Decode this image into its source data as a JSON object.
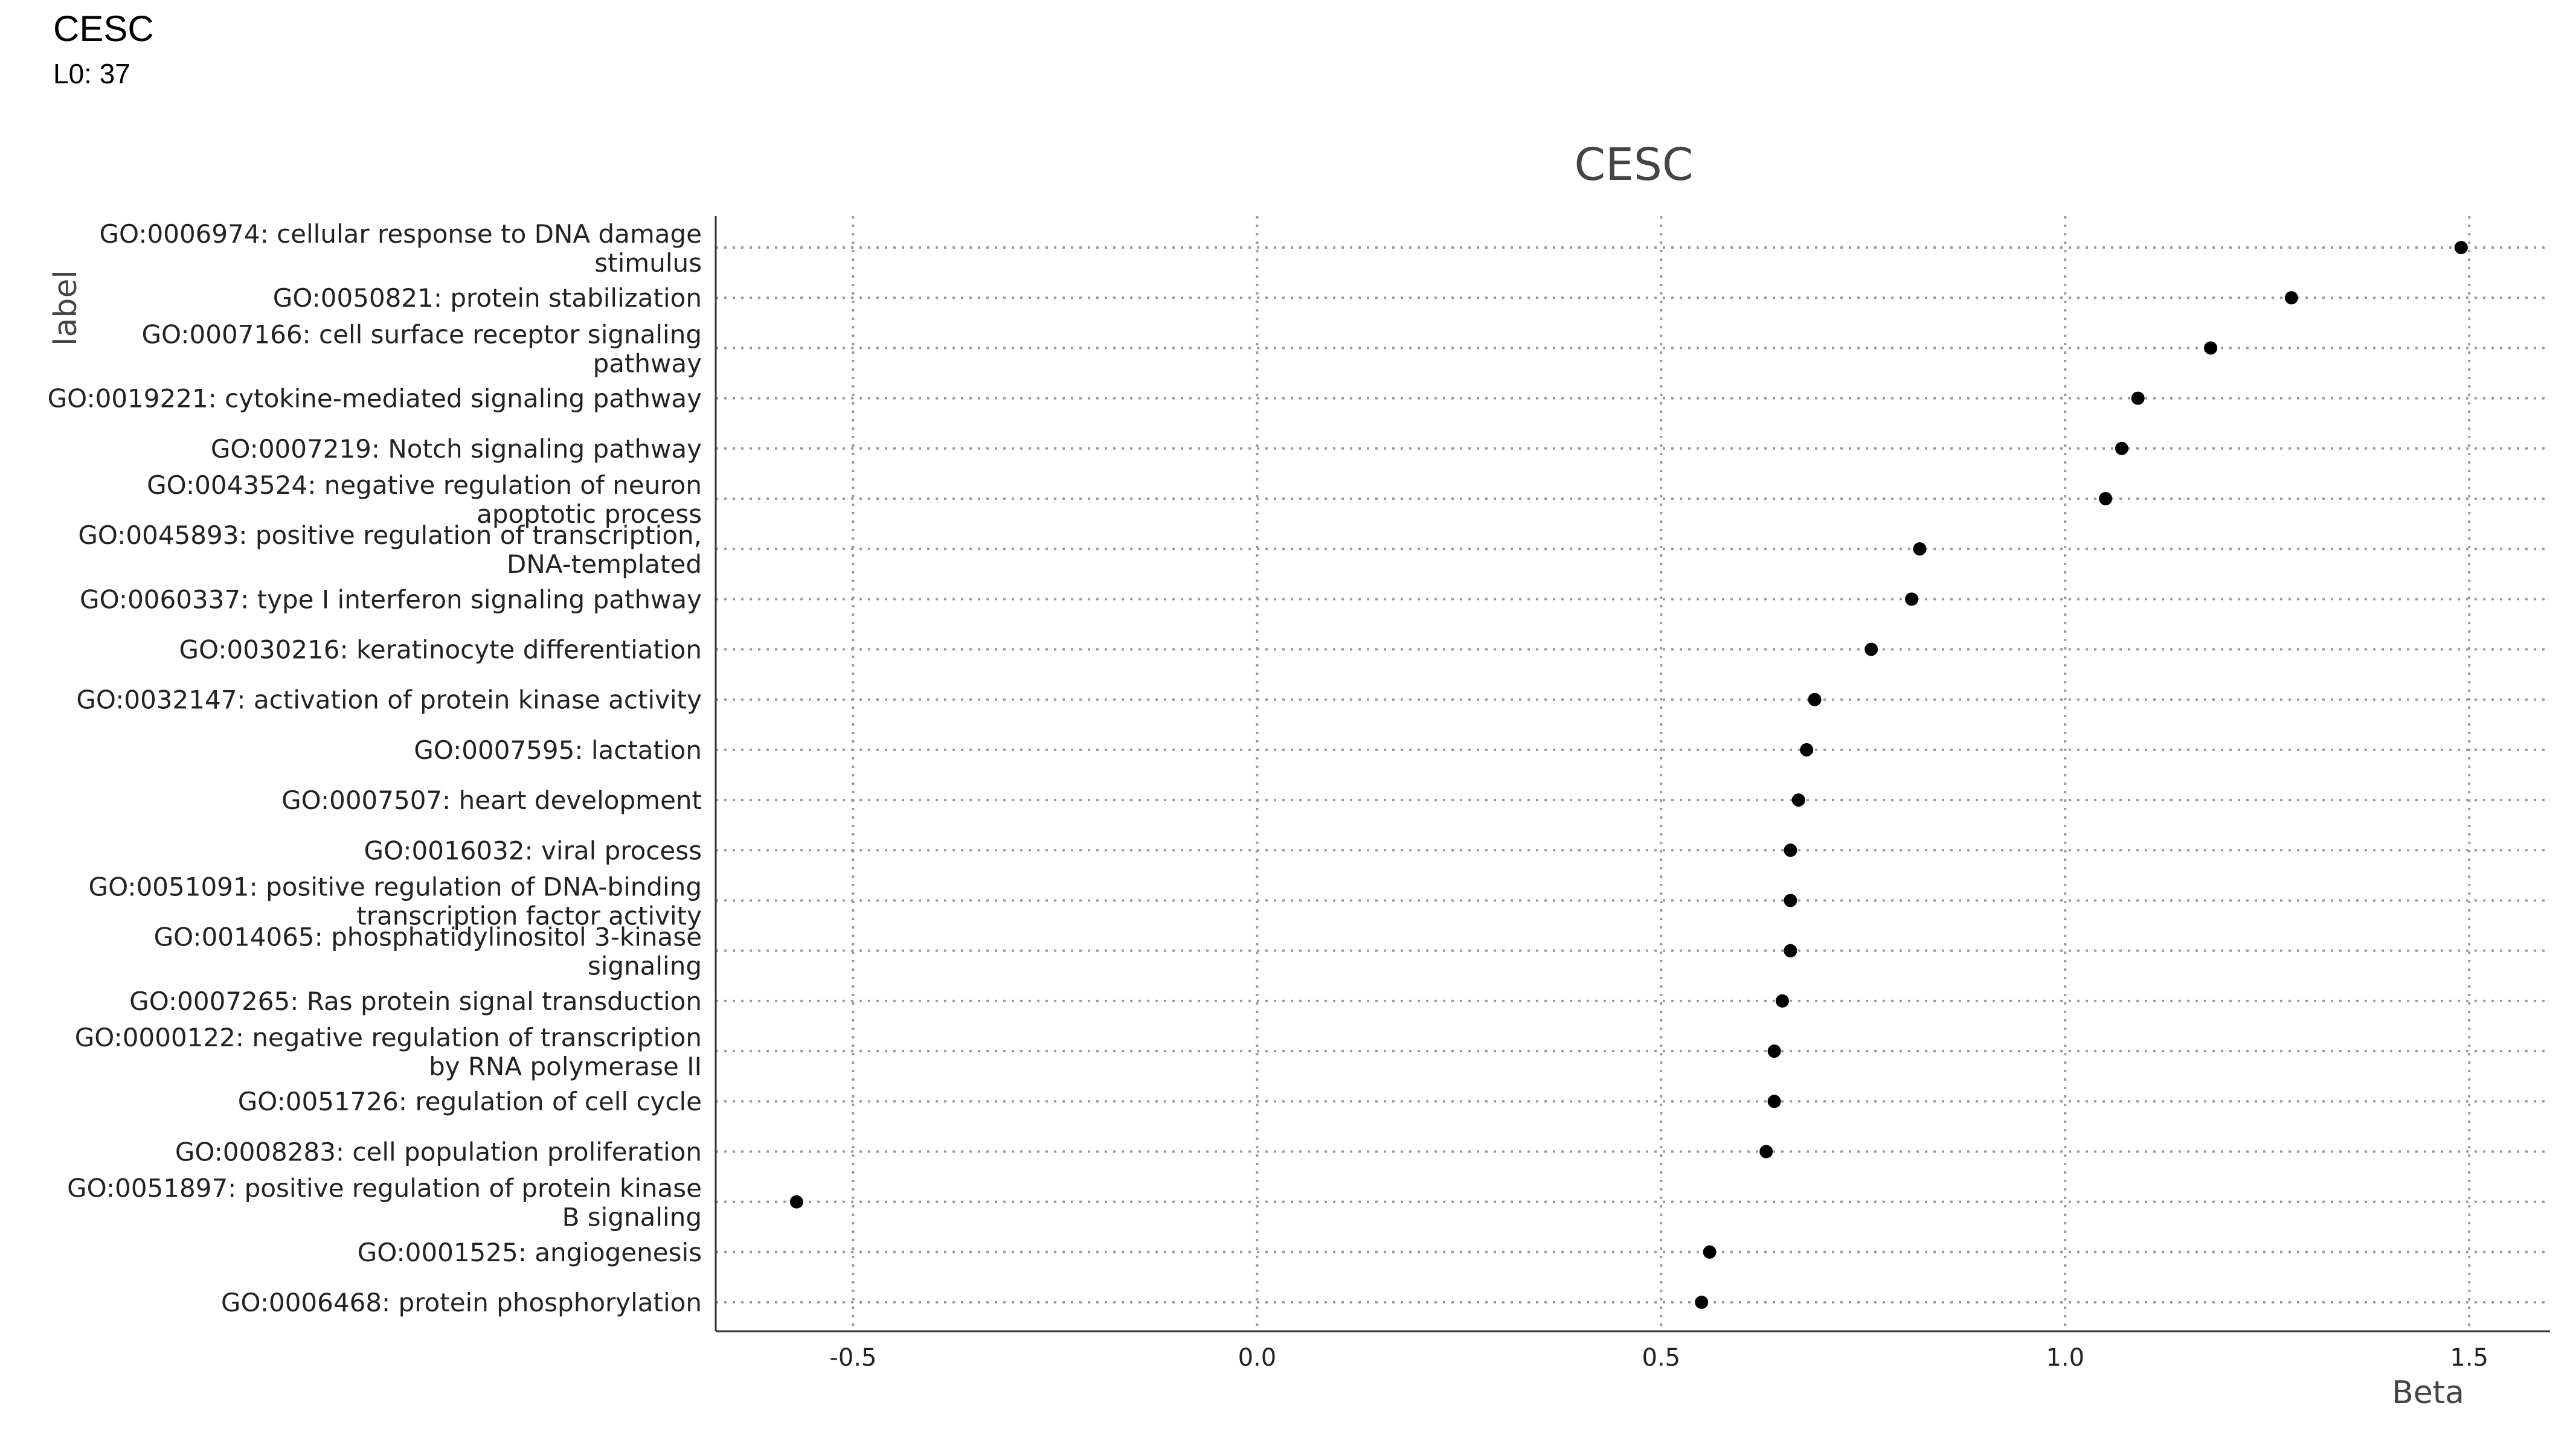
{
  "header": {
    "title": "CESC",
    "subtitle": "L0: 37"
  },
  "chart_data": {
    "type": "scatter",
    "title": "CESC",
    "xlabel": "Beta",
    "ylabel": "label",
    "xlim": [
      -0.67,
      1.6
    ],
    "xticks": [
      -0.5,
      0.0,
      0.5,
      1.0,
      1.5
    ],
    "xtick_labels": [
      "-0.5",
      "0.0",
      "0.5",
      "1.0",
      "1.5"
    ],
    "grid": "dotted, major x and y",
    "legend": "none",
    "marker_color": "#000000",
    "categories": [
      "GO:0006974: cellular response to DNA damage stimulus",
      "GO:0050821: protein stabilization",
      "GO:0007166: cell surface receptor signaling pathway",
      "GO:0019221: cytokine-mediated signaling pathway",
      "GO:0007219: Notch signaling pathway",
      "GO:0043524: negative regulation of neuron apoptotic process",
      "GO:0045893: positive regulation of transcription, DNA-templated",
      "GO:0060337: type I interferon signaling pathway",
      "GO:0030216: keratinocyte differentiation",
      "GO:0032147: activation of protein kinase activity",
      "GO:0007595: lactation",
      "GO:0007507: heart development",
      "GO:0016032: viral process",
      "GO:0051091: positive regulation of DNA-binding transcription factor activity",
      "GO:0014065: phosphatidylinositol 3-kinase signaling",
      "GO:0007265: Ras protein signal transduction",
      "GO:0000122: negative regulation of transcription by RNA polymerase II",
      "GO:0051726: regulation of cell cycle",
      "GO:0008283: cell population proliferation",
      "GO:0051897: positive regulation of protein kinase B signaling",
      "GO:0001525: angiogenesis",
      "GO:0006468: protein phosphorylation"
    ],
    "label_lines": [
      [
        "GO:0006974: cellular response to DNA damage",
        "stimulus"
      ],
      [
        "GO:0050821: protein stabilization"
      ],
      [
        "GO:0007166: cell surface receptor signaling",
        "pathway"
      ],
      [
        "GO:0019221: cytokine-mediated signaling pathway"
      ],
      [
        "GO:0007219: Notch signaling pathway"
      ],
      [
        "GO:0043524: negative regulation of neuron",
        "apoptotic process"
      ],
      [
        "GO:0045893: positive regulation of transcription,",
        "DNA-templated"
      ],
      [
        "GO:0060337: type I interferon signaling pathway"
      ],
      [
        "GO:0030216: keratinocyte differentiation"
      ],
      [
        "GO:0032147: activation of protein kinase activity"
      ],
      [
        "GO:0007595: lactation"
      ],
      [
        "GO:0007507: heart development"
      ],
      [
        "GO:0016032: viral process"
      ],
      [
        "GO:0051091: positive regulation of DNA-binding",
        "transcription factor activity"
      ],
      [
        "GO:0014065: phosphatidylinositol 3-kinase",
        "signaling"
      ],
      [
        "GO:0007265: Ras protein signal transduction"
      ],
      [
        "GO:0000122: negative regulation of transcription",
        "by RNA polymerase II"
      ],
      [
        "GO:0051726: regulation of cell cycle"
      ],
      [
        "GO:0008283: cell population proliferation"
      ],
      [
        "GO:0051897: positive regulation of protein kinase",
        "B signaling"
      ],
      [
        "GO:0001525: angiogenesis"
      ],
      [
        "GO:0006468: protein phosphorylation"
      ]
    ],
    "values": [
      1.49,
      1.28,
      1.18,
      1.09,
      1.07,
      1.05,
      0.82,
      0.81,
      0.76,
      0.69,
      0.68,
      0.67,
      0.66,
      0.66,
      0.66,
      0.65,
      0.64,
      0.64,
      0.63,
      -0.57,
      0.56,
      0.55
    ]
  }
}
